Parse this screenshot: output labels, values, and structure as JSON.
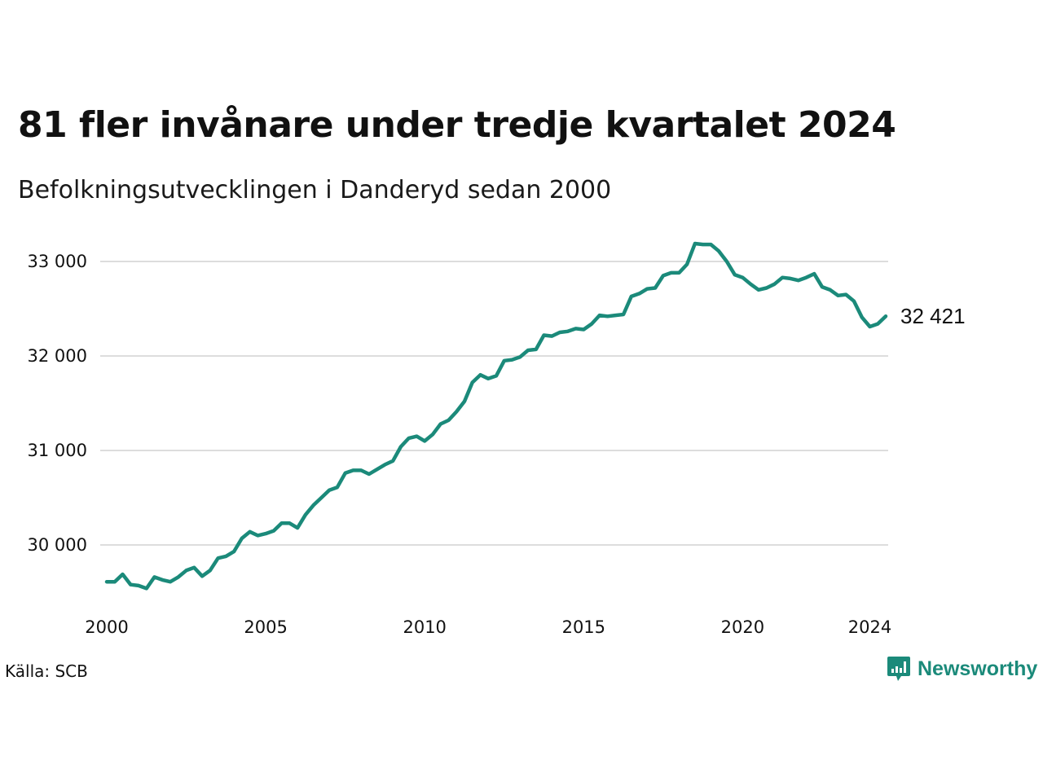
{
  "title": "81 fler invånare under tredje kvartalet 2024",
  "subtitle": "Befolkningsutvecklingen i Danderyd sedan 2000",
  "source": "Källa: SCB",
  "brand": {
    "name": "Newsworthy",
    "icon": "newsworthy-logo-icon"
  },
  "colors": {
    "line": "#1b8a7a",
    "grid": "#dddddd",
    "text": "#111111"
  },
  "chart_data": {
    "type": "line",
    "title": "81 fler invånare under tredje kvartalet 2024",
    "subtitle": "Befolkningsutvecklingen i Danderyd sedan 2000",
    "xlabel": "",
    "ylabel": "",
    "ylim": [
      29500,
      33300
    ],
    "xlim": [
      2000,
      2024.75
    ],
    "grid": true,
    "x_ticks": [
      2000,
      2005,
      2010,
      2015,
      2020,
      2024
    ],
    "x_tick_labels": [
      "2000",
      "2005",
      "2010",
      "2015",
      "2020",
      "2024"
    ],
    "y_ticks": [
      30000,
      31000,
      32000,
      33000
    ],
    "y_tick_labels": [
      "30 000",
      "31 000",
      "32 000",
      "33 000"
    ],
    "end_label": "32 421",
    "x": [
      2000.0,
      2000.25,
      2000.5,
      2000.75,
      2001.0,
      2001.25,
      2001.5,
      2001.75,
      2002.0,
      2002.25,
      2002.5,
      2002.75,
      2003.0,
      2003.25,
      2003.5,
      2003.75,
      2004.0,
      2004.25,
      2004.5,
      2004.75,
      2005.0,
      2005.25,
      2005.5,
      2005.75,
      2006.0,
      2006.25,
      2006.5,
      2006.75,
      2007.0,
      2007.25,
      2007.5,
      2007.75,
      2008.0,
      2008.25,
      2008.5,
      2008.75,
      2009.0,
      2009.25,
      2009.5,
      2009.75,
      2010.0,
      2010.25,
      2010.5,
      2010.75,
      2011.0,
      2011.25,
      2011.5,
      2011.75,
      2012.0,
      2012.25,
      2012.5,
      2012.75,
      2013.0,
      2013.25,
      2013.5,
      2013.75,
      2014.0,
      2014.25,
      2014.5,
      2014.75,
      2015.0,
      2015.25,
      2015.5,
      2015.75,
      2016.0,
      2016.25,
      2016.5,
      2016.75,
      2017.0,
      2017.25,
      2017.5,
      2017.75,
      2018.0,
      2018.25,
      2018.5,
      2018.75,
      2019.0,
      2019.25,
      2019.5,
      2019.75,
      2020.0,
      2020.25,
      2020.5,
      2020.75,
      2021.0,
      2021.25,
      2021.5,
      2021.75,
      2022.0,
      2022.25,
      2022.5,
      2022.75,
      2023.0,
      2023.25,
      2023.5,
      2023.75,
      2024.0,
      2024.25,
      2024.5
    ],
    "series": [
      {
        "values": [
          29610,
          29610,
          29690,
          29580,
          29570,
          29540,
          29660,
          29630,
          29610,
          29660,
          29730,
          29760,
          29670,
          29730,
          29860,
          29880,
          29930,
          30070,
          30140,
          30100,
          30120,
          30150,
          30230,
          30230,
          30180,
          30320,
          30420,
          30500,
          30580,
          30610,
          30760,
          30790,
          30790,
          30750,
          30800,
          30850,
          30890,
          31040,
          31130,
          31150,
          31100,
          31170,
          31280,
          31320,
          31410,
          31520,
          31720,
          31800,
          31760,
          31790,
          31950,
          31960,
          31990,
          32060,
          32070,
          32220,
          32210,
          32250,
          32260,
          32290,
          32280,
          32340,
          32430,
          32420,
          32430,
          32440,
          32630,
          32660,
          32710,
          32720,
          32850,
          32880,
          32880,
          32970,
          33190,
          33180,
          33180,
          33110,
          33000,
          32860,
          32830,
          32760,
          32700,
          32720,
          32760,
          32830,
          32820,
          32800,
          32830,
          32870,
          32730,
          32700,
          32640,
          32650,
          32580,
          32410,
          32310,
          32340,
          32421
        ]
      }
    ]
  }
}
